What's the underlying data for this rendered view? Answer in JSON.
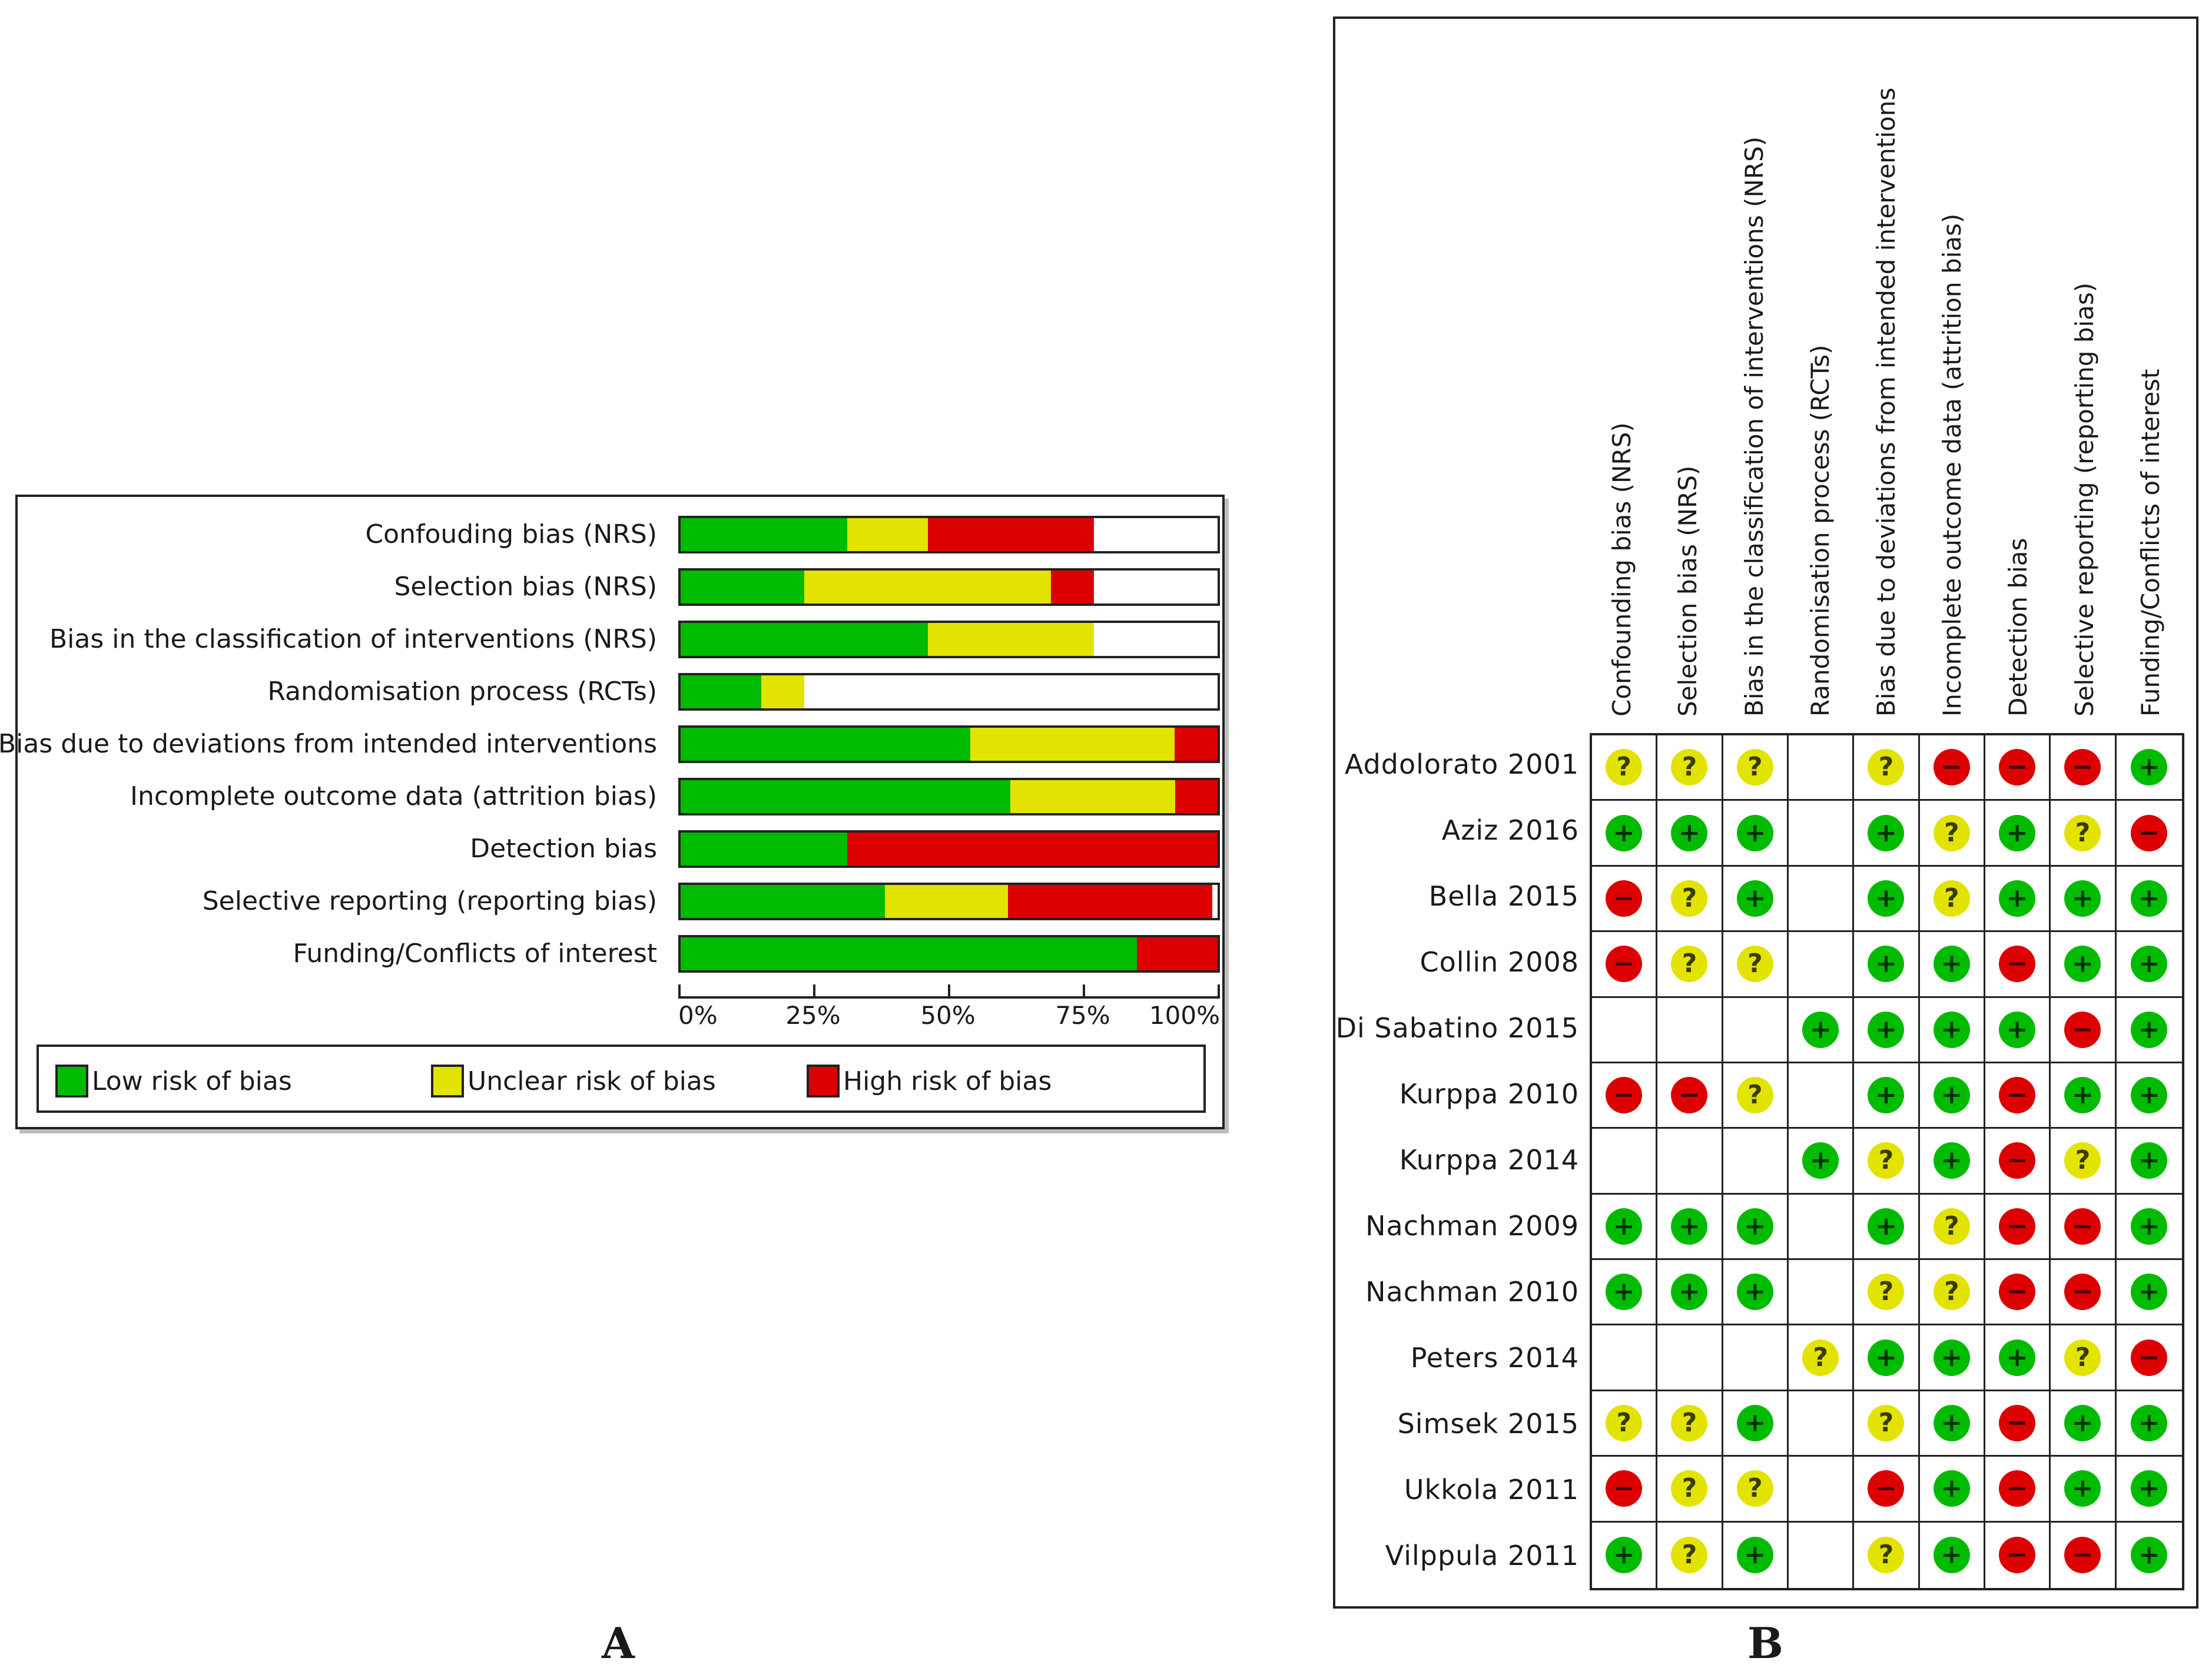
{
  "chart_data": [
    {
      "type": "bar",
      "stacked": true,
      "orientation": "horizontal",
      "categories": [
        "Confouding bias (NRS)",
        "Selection bias (NRS)",
        "Bias in the classification of interventions (NRS)",
        "Randomisation process (RCTs)",
        "Bias due to deviations from intended interventions",
        "Incomplete outcome data (attrition bias)",
        "Detection bias",
        "Selective reporting (reporting bias)",
        "Funding/Conflicts of interest"
      ],
      "series": [
        {
          "name": "Low risk of bias",
          "color": "#00bb00",
          "values": [
            31,
            23,
            46,
            15,
            54,
            62,
            31,
            38,
            85
          ]
        },
        {
          "name": "Unclear risk of bias",
          "color": "#e3e300",
          "values": [
            15,
            46,
            31,
            8,
            38,
            31,
            0,
            23,
            0
          ]
        },
        {
          "name": "High risk of bias",
          "color": "#dd0000",
          "values": [
            31,
            8,
            0,
            0,
            8,
            8,
            69,
            38,
            15
          ]
        }
      ],
      "xticks": [
        "0%",
        "25%",
        "50%",
        "75%",
        "100%"
      ],
      "xlim": [
        0,
        100
      ],
      "legend": "bottom"
    },
    {
      "type": "table",
      "columns": [
        "Confounding bias (NRS)",
        "Selection bias (NRS)",
        "Bias in the classification of interventions (NRS)",
        "Randomisation process (RCTs)",
        "Bias due to deviations from intended interventions",
        "Incomplete outcome data (attrition bias)",
        "Detection bias",
        "Selective reporting (reporting bias)",
        "Funding/Conflicts of interest"
      ],
      "rows": [
        {
          "study": "Addolorato 2001",
          "cells": [
            "?",
            "?",
            "?",
            "",
            "?",
            "-",
            "-",
            "-",
            "+"
          ]
        },
        {
          "study": "Aziz 2016",
          "cells": [
            "+",
            "+",
            "+",
            "",
            "+",
            "?",
            "+",
            "?",
            "-"
          ]
        },
        {
          "study": "Bella 2015",
          "cells": [
            "-",
            "?",
            "+",
            "",
            "+",
            "?",
            "+",
            "+",
            "+"
          ]
        },
        {
          "study": "Collin 2008",
          "cells": [
            "-",
            "?",
            "?",
            "",
            "+",
            "+",
            "-",
            "+",
            "+"
          ]
        },
        {
          "study": "Di Sabatino 2015",
          "cells": [
            "",
            "",
            "",
            "+",
            "+",
            "+",
            "+",
            "-",
            "+"
          ]
        },
        {
          "study": "Kurppa 2010",
          "cells": [
            "-",
            "-",
            "?",
            "",
            "+",
            "+",
            "-",
            "+",
            "+"
          ]
        },
        {
          "study": "Kurppa 2014",
          "cells": [
            "",
            "",
            "",
            "+",
            "?",
            "+",
            "-",
            "?",
            "+"
          ]
        },
        {
          "study": "Nachman 2009",
          "cells": [
            "+",
            "+",
            "+",
            "",
            "+",
            "?",
            "-",
            "-",
            "+"
          ]
        },
        {
          "study": "Nachman 2010",
          "cells": [
            "+",
            "+",
            "+",
            "",
            "?",
            "?",
            "-",
            "-",
            "+"
          ]
        },
        {
          "study": "Peters 2014",
          "cells": [
            "",
            "",
            "",
            "?",
            "+",
            "+",
            "+",
            "?",
            "-"
          ]
        },
        {
          "study": "Simsek 2015",
          "cells": [
            "?",
            "?",
            "+",
            "",
            "?",
            "+",
            "-",
            "+",
            "+"
          ]
        },
        {
          "study": "Ukkola 2011",
          "cells": [
            "-",
            "?",
            "?",
            "",
            "-",
            "+",
            "-",
            "+",
            "+"
          ]
        },
        {
          "study": "Vilppula 2011",
          "cells": [
            "+",
            "?",
            "+",
            "",
            "?",
            "+",
            "-",
            "-",
            "+"
          ]
        }
      ],
      "symbol_colors": {
        "+": "#00bb00",
        "?": "#e3e300",
        "-": "#dd0000"
      }
    }
  ],
  "panel_labels": {
    "a": "A",
    "b": "B"
  },
  "glyphs": {
    "plus": "+",
    "minus": "−",
    "question": "?"
  }
}
